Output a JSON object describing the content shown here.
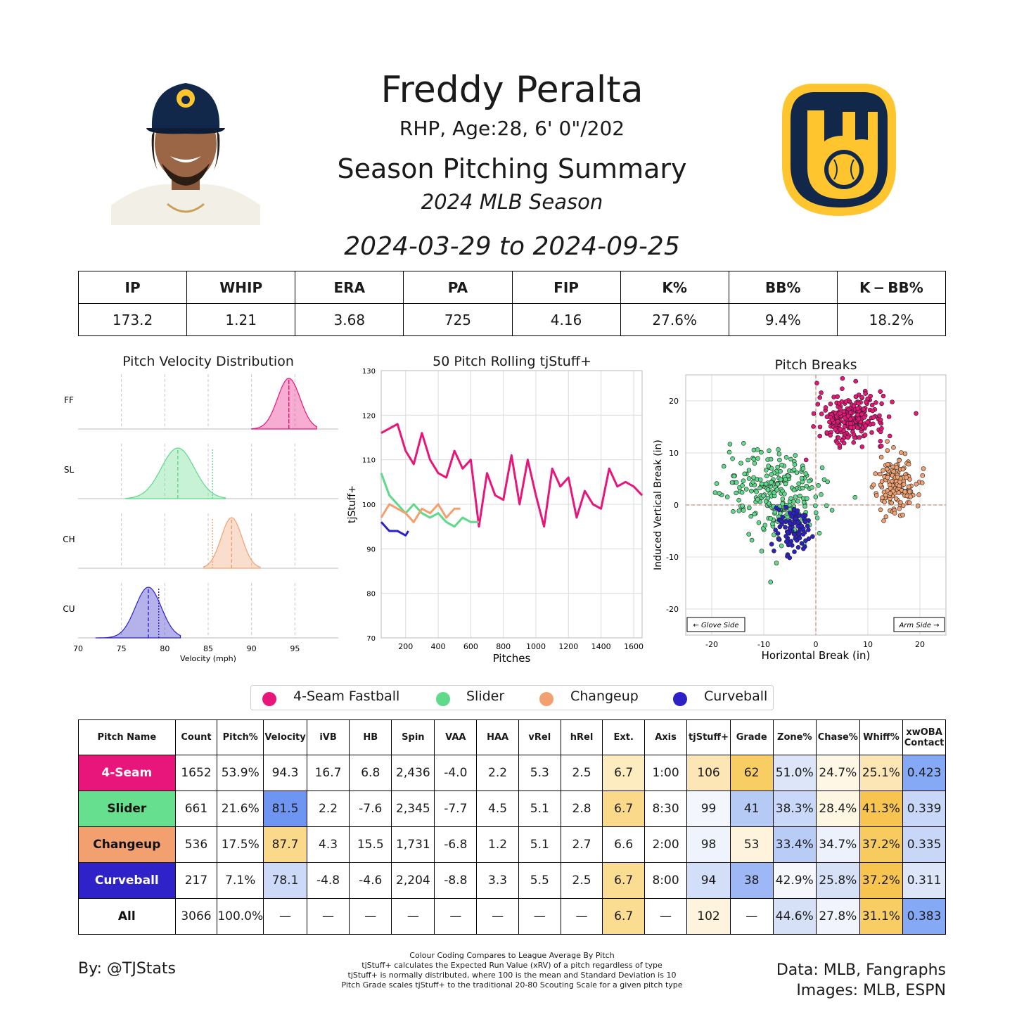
{
  "header": {
    "name": "Freddy Peralta",
    "bio": "RHP, Age:28, 6' 0\"/202",
    "title": "Season Pitching Summary",
    "season": "2024 MLB Season",
    "date_range": "2024-03-29 to 2024-09-25"
  },
  "season_stats": {
    "headers": [
      "IP",
      "WHIP",
      "ERA",
      "PA",
      "FIP",
      "K%",
      "BB%",
      "K − BB%"
    ],
    "values": [
      "173.2",
      "1.21",
      "3.68",
      "725",
      "4.16",
      "27.6%",
      "9.4%",
      "18.2%"
    ]
  },
  "legend": [
    {
      "label": "4-Seam Fastball",
      "color": "#E8157A"
    },
    {
      "label": "Slider",
      "color": "#5FD98A"
    },
    {
      "label": "Changeup",
      "color": "#F2A070"
    },
    {
      "label": "Curveball",
      "color": "#2B21C7"
    }
  ],
  "chart_data": [
    {
      "type": "area",
      "title": "Pitch Velocity Distribution",
      "xlabel": "Velocity (mph)",
      "xlim": [
        70,
        100
      ],
      "xticks": [
        70,
        75,
        80,
        85,
        90,
        95
      ],
      "series": [
        {
          "name": "FF",
          "mean": 94.3,
          "league_mean": 94.3,
          "sd": 1.3,
          "min": 90.0,
          "max": 97.5,
          "color": "#E8157A"
        },
        {
          "name": "SL",
          "mean": 81.5,
          "league_mean": 85.5,
          "sd": 1.9,
          "min": 75.5,
          "max": 87.0,
          "color": "#5FD98A"
        },
        {
          "name": "CH",
          "mean": 87.7,
          "league_mean": 85.5,
          "sd": 1.2,
          "min": 84.5,
          "max": 91.0,
          "color": "#F2A070"
        },
        {
          "name": "CU",
          "mean": 78.1,
          "league_mean": 79.3,
          "sd": 1.5,
          "min": 72.0,
          "max": 81.8,
          "color": "#2B21C7"
        }
      ]
    },
    {
      "type": "line",
      "title": "50 Pitch Rolling tjStuff+",
      "xlabel": "Pitches",
      "ylabel": "tjStuff+",
      "xlim": [
        50,
        1652
      ],
      "ylim": [
        70,
        130
      ],
      "xticks": [
        200,
        400,
        600,
        800,
        1000,
        1200,
        1400,
        1600
      ],
      "yticks": [
        70,
        80,
        90,
        100,
        110,
        120,
        130
      ],
      "series": [
        {
          "name": "4-Seam Fastball",
          "color": "#E8157A",
          "x": [
            50,
            100,
            150,
            200,
            250,
            300,
            350,
            400,
            450,
            500,
            550,
            600,
            650,
            700,
            750,
            800,
            850,
            900,
            950,
            1000,
            1050,
            1100,
            1150,
            1200,
            1250,
            1300,
            1350,
            1400,
            1450,
            1500,
            1550,
            1600,
            1652
          ],
          "y": [
            116,
            117,
            118,
            112,
            109,
            116,
            110,
            107,
            106,
            112,
            108,
            110,
            95,
            107,
            102,
            101,
            111,
            100,
            110,
            102,
            95,
            108,
            104,
            106,
            97,
            103,
            100,
            99,
            108,
            104,
            105,
            104,
            102
          ]
        },
        {
          "name": "Slider",
          "color": "#5FD98A",
          "x": [
            50,
            100,
            150,
            200,
            250,
            300,
            350,
            400,
            450,
            500,
            550,
            600,
            650
          ],
          "y": [
            107,
            102,
            100,
            98,
            100,
            98,
            97,
            98,
            96,
            95,
            97,
            96,
            96
          ]
        },
        {
          "name": "Changeup",
          "color": "#F2A070",
          "x": [
            50,
            100,
            150,
            200,
            250,
            300,
            350,
            400,
            450,
            500,
            536
          ],
          "y": [
            97,
            100,
            99,
            98,
            96,
            99,
            98,
            100,
            97,
            99,
            99
          ]
        },
        {
          "name": "Curveball",
          "color": "#2B21C7",
          "x": [
            50,
            100,
            150,
            200,
            217
          ],
          "y": [
            96,
            94,
            94,
            93,
            94
          ]
        }
      ]
    },
    {
      "type": "scatter",
      "title": "Pitch Breaks",
      "xlabel": "Horizontal Break (in)",
      "ylabel": "Induced Vertical Break (in)",
      "xlim": [
        -25,
        25
      ],
      "ylim": [
        -25,
        25
      ],
      "xticks": [
        -20,
        -10,
        0,
        10,
        20
      ],
      "yticks": [
        -20,
        -10,
        0,
        10,
        20
      ],
      "annotations": [
        "← Glove Side",
        "Arm Side →"
      ],
      "series": [
        {
          "name": "4-Seam Fastball",
          "color": "#E8157A",
          "center": [
            6.8,
            16.7
          ],
          "spread": [
            3.2,
            2.3
          ]
        },
        {
          "name": "Slider",
          "color": "#5FD98A",
          "center": [
            -7.6,
            2.2
          ],
          "spread": [
            4.8,
            4.2
          ]
        },
        {
          "name": "Changeup",
          "color": "#F2A070",
          "center": [
            15.5,
            4.3
          ],
          "spread": [
            1.9,
            2.8
          ]
        },
        {
          "name": "Curveball",
          "color": "#2B21C7",
          "center": [
            -4.6,
            -4.8
          ],
          "spread": [
            1.6,
            2.5
          ]
        }
      ]
    },
    {
      "type": "table",
      "columns": [
        "Pitch Name",
        "Count",
        "Pitch%",
        "Velocity",
        "iVB",
        "HB",
        "Spin",
        "VAA",
        "HAA",
        "vRel",
        "hRel",
        "Ext.",
        "Axis",
        "tjStuff+",
        "Grade",
        "Zone%",
        "Chase%",
        "Whiff%",
        "xwOBA Contact"
      ],
      "rows": [
        {
          "cells": [
            "4-Seam",
            "1652",
            "53.9%",
            "94.3",
            "16.7",
            "6.8",
            "2,436",
            "-4.0",
            "2.2",
            "5.3",
            "2.5",
            "6.7",
            "1:00",
            "106",
            "62",
            "51.0%",
            "24.7%",
            "25.1%",
            "0.423"
          ],
          "name_bg": "#E8157A",
          "name_fg": "#ffffff",
          "colors": [
            "",
            "",
            "",
            "",
            "",
            "",
            "",
            "",
            "",
            "",
            "",
            "#FDECC0",
            "",
            "#FDE6B5",
            "#F8CD63",
            "#DCE6F8",
            "#FFF7E6",
            "#FDE6B5",
            "#86A9F5"
          ]
        },
        {
          "cells": [
            "Slider",
            "661",
            "21.6%",
            "81.5",
            "2.2",
            "-7.6",
            "2,345",
            "-7.7",
            "4.5",
            "5.1",
            "2.8",
            "6.7",
            "8:30",
            "99",
            "41",
            "38.3%",
            "28.4%",
            "41.3%",
            "0.339"
          ],
          "name_bg": "#66E08E",
          "name_fg": "#111111",
          "colors": [
            "",
            "",
            "",
            "#6F95F3",
            "",
            "",
            "",
            "",
            "",
            "",
            "",
            "#FBD98A",
            "",
            "#F3F6FD",
            "#B6CAF6",
            "#C9D8F8",
            "#FDF6E3",
            "#F7C450",
            "#C8D7F7"
          ]
        },
        {
          "cells": [
            "Changeup",
            "536",
            "17.5%",
            "87.7",
            "4.3",
            "15.5",
            "1,731",
            "-6.8",
            "1.2",
            "5.1",
            "2.7",
            "6.6",
            "2:00",
            "98",
            "53",
            "33.4%",
            "34.7%",
            "37.2%",
            "0.335"
          ],
          "name_bg": "#F2A070",
          "name_fg": "#111111",
          "colors": [
            "",
            "",
            "",
            "#FBD98A",
            "",
            "",
            "",
            "",
            "",
            "",
            "",
            "",
            "",
            "#EFF3FC",
            "#FEF3DC",
            "#B9CCF6",
            "#EDF1FB",
            "#F8CB5F",
            "#C8D7F7"
          ]
        },
        {
          "cells": [
            "Curveball",
            "217",
            "7.1%",
            "78.1",
            "-4.8",
            "-4.6",
            "2,204",
            "-8.8",
            "3.3",
            "5.5",
            "2.5",
            "6.7",
            "8:00",
            "94",
            "38",
            "42.9%",
            "25.8%",
            "37.2%",
            "0.311"
          ],
          "name_bg": "#2E22C8",
          "name_fg": "#ffffff",
          "colors": [
            "",
            "",
            "",
            "#CCDAF8",
            "",
            "",
            "",
            "",
            "",
            "",
            "",
            "#FBDD92",
            "",
            "#D3DEF8",
            "#9DB8F5",
            "#F5F7FD",
            "#D6E1F8",
            "#F7C450",
            "#DCE6F8"
          ]
        },
        {
          "cells": [
            "All",
            "3066",
            "100.0%",
            "—",
            "—",
            "—",
            "—",
            "—",
            "—",
            "—",
            "—",
            "6.7",
            "—",
            "102",
            "—",
            "44.6%",
            "27.8%",
            "31.1%",
            "0.383"
          ],
          "name_bg": "#ffffff",
          "name_fg": "#111111",
          "colors": [
            "",
            "",
            "",
            "",
            "",
            "",
            "",
            "",
            "",
            "",
            "",
            "#FBDD92",
            "",
            "#FEF3DC",
            "",
            "#D6E1F8",
            "#F1F4FC",
            "#F8CD63",
            "#86A9F5"
          ]
        }
      ]
    }
  ],
  "footer": {
    "byline": "By: @TJStats",
    "data_source": "Data: MLB, Fangraphs",
    "image_source": "Images: MLB, ESPN",
    "notes": [
      "Colour Coding Compares to League Average By Pitch",
      "tjStuff+ calculates the Expected Run Value (xRV) of a pitch regardless of type",
      "tjStuff+ is normally distributed, where 100 is the mean and Standard Deviation is 10",
      "Pitch Grade scales tjStuff+ to the traditional 20-80 Scouting Scale for a given pitch type"
    ]
  },
  "colors": {
    "team_navy": "#12284B",
    "team_gold": "#FFC52F"
  }
}
